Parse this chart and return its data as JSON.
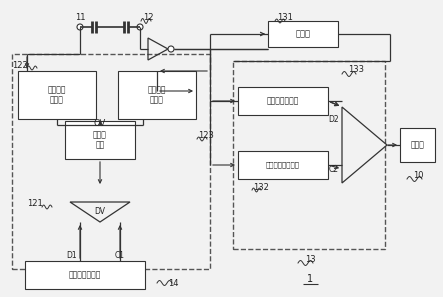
{
  "bg_color": "#f2f2f2",
  "line_color": "#333333",
  "dashed_color": "#555555",
  "labels": {
    "buffer": "缓冲器",
    "temp2": "第二温度传感器",
    "target_temp": "目标温度设定电路",
    "voltage_cap1": "压控可变\n电容器",
    "voltage_cap2": "压控可变\n电容器",
    "voltage_gen": "电压产\n生器",
    "temp1": "第一温度传感器",
    "heater": "加热器"
  },
  "ref": {
    "n11": "11",
    "n12": "12",
    "n121": "121",
    "n122": "122",
    "n123": "123",
    "n131": "131",
    "n132": "132",
    "n133": "133",
    "n13": "13",
    "n14": "14",
    "n10": "10",
    "n1": "1",
    "OV": "OV",
    "DV": "DV",
    "D1": "D1",
    "C1": "C1",
    "D2": "D2",
    "C2": "C2"
  }
}
